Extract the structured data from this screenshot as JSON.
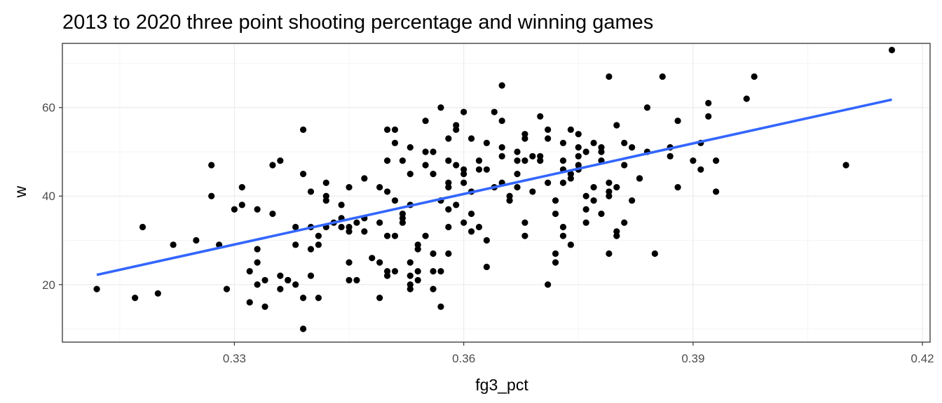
{
  "chart_data": {
    "type": "scatter",
    "title": "2013 to 2020 three point shooting percentage and winning games",
    "xlabel": "fg3_pct",
    "ylabel": "w",
    "xlim": [
      0.3075,
      0.421
    ],
    "ylim": [
      7,
      74.5
    ],
    "x_ticks": [
      0.33,
      0.36,
      0.39,
      0.42
    ],
    "x_tick_labels": [
      "0.33",
      "0.36",
      "0.39",
      "0.42"
    ],
    "y_ticks": [
      20,
      40,
      60
    ],
    "y_tick_labels": [
      "20",
      "40",
      "60"
    ],
    "grid": true,
    "legend": "none",
    "colors": {
      "points": "#000000",
      "trend": "#3366FF",
      "panel_border": "#333333",
      "grid_major": "#ebebeb",
      "grid_minor": "#f5f5f5",
      "tick_text": "#4d4d4d"
    },
    "trend_line": {
      "method": "linear",
      "x": [
        0.312,
        0.416
      ],
      "y": [
        22.2,
        61.8
      ]
    },
    "points": [
      [
        0.312,
        19
      ],
      [
        0.317,
        17
      ],
      [
        0.318,
        33
      ],
      [
        0.32,
        18
      ],
      [
        0.322,
        29
      ],
      [
        0.325,
        30
      ],
      [
        0.327,
        47
      ],
      [
        0.327,
        40
      ],
      [
        0.328,
        29
      ],
      [
        0.329,
        19
      ],
      [
        0.33,
        37
      ],
      [
        0.331,
        38
      ],
      [
        0.331,
        42
      ],
      [
        0.332,
        16
      ],
      [
        0.332,
        23
      ],
      [
        0.333,
        37
      ],
      [
        0.333,
        28
      ],
      [
        0.333,
        25
      ],
      [
        0.333,
        20
      ],
      [
        0.334,
        21
      ],
      [
        0.334,
        15
      ],
      [
        0.335,
        47
      ],
      [
        0.335,
        36
      ],
      [
        0.336,
        48
      ],
      [
        0.336,
        22
      ],
      [
        0.336,
        19
      ],
      [
        0.337,
        21
      ],
      [
        0.337,
        21
      ],
      [
        0.338,
        20
      ],
      [
        0.338,
        33
      ],
      [
        0.338,
        29
      ],
      [
        0.339,
        10
      ],
      [
        0.339,
        45
      ],
      [
        0.339,
        17
      ],
      [
        0.339,
        55
      ],
      [
        0.34,
        22
      ],
      [
        0.34,
        33
      ],
      [
        0.34,
        41
      ],
      [
        0.34,
        28
      ],
      [
        0.341,
        17
      ],
      [
        0.341,
        29
      ],
      [
        0.341,
        31
      ],
      [
        0.342,
        43
      ],
      [
        0.342,
        40
      ],
      [
        0.342,
        39
      ],
      [
        0.342,
        33
      ],
      [
        0.343,
        34
      ],
      [
        0.344,
        33
      ],
      [
        0.344,
        38
      ],
      [
        0.344,
        35
      ],
      [
        0.345,
        21
      ],
      [
        0.345,
        25
      ],
      [
        0.345,
        42
      ],
      [
        0.345,
        32
      ],
      [
        0.345,
        33
      ],
      [
        0.346,
        21
      ],
      [
        0.346,
        34
      ],
      [
        0.347,
        44
      ],
      [
        0.347,
        32
      ],
      [
        0.347,
        35
      ],
      [
        0.348,
        26
      ],
      [
        0.349,
        34
      ],
      [
        0.349,
        25
      ],
      [
        0.349,
        17
      ],
      [
        0.349,
        42
      ],
      [
        0.35,
        48
      ],
      [
        0.35,
        41
      ],
      [
        0.35,
        31
      ],
      [
        0.35,
        23
      ],
      [
        0.35,
        55
      ],
      [
        0.35,
        22
      ],
      [
        0.351,
        55
      ],
      [
        0.351,
        52
      ],
      [
        0.351,
        39
      ],
      [
        0.351,
        31
      ],
      [
        0.351,
        23
      ],
      [
        0.352,
        48
      ],
      [
        0.352,
        35
      ],
      [
        0.352,
        36
      ],
      [
        0.352,
        34
      ],
      [
        0.353,
        51
      ],
      [
        0.353,
        45
      ],
      [
        0.353,
        38
      ],
      [
        0.353,
        25
      ],
      [
        0.353,
        22
      ],
      [
        0.353,
        20
      ],
      [
        0.353,
        19
      ],
      [
        0.354,
        29
      ],
      [
        0.354,
        28
      ],
      [
        0.354,
        21
      ],
      [
        0.354,
        23
      ],
      [
        0.355,
        50
      ],
      [
        0.355,
        47
      ],
      [
        0.355,
        31
      ],
      [
        0.355,
        57
      ],
      [
        0.356,
        27
      ],
      [
        0.356,
        23
      ],
      [
        0.356,
        50
      ],
      [
        0.356,
        45
      ],
      [
        0.356,
        19
      ],
      [
        0.357,
        60
      ],
      [
        0.357,
        39
      ],
      [
        0.357,
        15
      ],
      [
        0.357,
        23
      ],
      [
        0.358,
        48
      ],
      [
        0.358,
        42
      ],
      [
        0.358,
        43
      ],
      [
        0.358,
        53
      ],
      [
        0.358,
        33
      ],
      [
        0.358,
        27
      ],
      [
        0.358,
        37
      ],
      [
        0.359,
        55
      ],
      [
        0.359,
        56
      ],
      [
        0.359,
        47
      ],
      [
        0.359,
        38
      ],
      [
        0.36,
        46
      ],
      [
        0.36,
        43
      ],
      [
        0.36,
        45
      ],
      [
        0.36,
        34
      ],
      [
        0.36,
        59
      ],
      [
        0.361,
        53
      ],
      [
        0.361,
        41
      ],
      [
        0.361,
        36
      ],
      [
        0.361,
        32
      ],
      [
        0.362,
        48
      ],
      [
        0.362,
        46
      ],
      [
        0.362,
        33
      ],
      [
        0.363,
        52
      ],
      [
        0.363,
        24
      ],
      [
        0.363,
        30
      ],
      [
        0.363,
        46
      ],
      [
        0.364,
        59
      ],
      [
        0.364,
        42
      ],
      [
        0.365,
        57
      ],
      [
        0.365,
        43
      ],
      [
        0.365,
        49
      ],
      [
        0.365,
        51
      ],
      [
        0.365,
        65
      ],
      [
        0.366,
        39
      ],
      [
        0.366,
        40
      ],
      [
        0.367,
        48
      ],
      [
        0.367,
        45
      ],
      [
        0.367,
        50
      ],
      [
        0.367,
        42
      ],
      [
        0.368,
        34
      ],
      [
        0.368,
        31
      ],
      [
        0.368,
        53
      ],
      [
        0.368,
        48
      ],
      [
        0.368,
        54
      ],
      [
        0.369,
        49
      ],
      [
        0.369,
        41
      ],
      [
        0.37,
        58
      ],
      [
        0.37,
        49
      ],
      [
        0.37,
        48
      ],
      [
        0.371,
        55
      ],
      [
        0.371,
        53
      ],
      [
        0.371,
        43
      ],
      [
        0.371,
        20
      ],
      [
        0.372,
        25
      ],
      [
        0.372,
        27
      ],
      [
        0.372,
        39
      ],
      [
        0.372,
        36
      ],
      [
        0.373,
        52
      ],
      [
        0.373,
        48
      ],
      [
        0.373,
        46
      ],
      [
        0.373,
        43
      ],
      [
        0.373,
        33
      ],
      [
        0.373,
        31
      ],
      [
        0.374,
        29
      ],
      [
        0.374,
        55
      ],
      [
        0.374,
        44
      ],
      [
        0.374,
        45
      ],
      [
        0.375,
        46
      ],
      [
        0.375,
        47
      ],
      [
        0.375,
        49
      ],
      [
        0.375,
        54
      ],
      [
        0.375,
        51
      ],
      [
        0.376,
        50
      ],
      [
        0.376,
        37
      ],
      [
        0.376,
        34
      ],
      [
        0.376,
        40
      ],
      [
        0.377,
        42
      ],
      [
        0.377,
        39
      ],
      [
        0.377,
        52
      ],
      [
        0.378,
        36
      ],
      [
        0.378,
        48
      ],
      [
        0.378,
        51
      ],
      [
        0.378,
        50
      ],
      [
        0.379,
        27
      ],
      [
        0.379,
        67
      ],
      [
        0.379,
        43
      ],
      [
        0.379,
        41
      ],
      [
        0.379,
        40
      ],
      [
        0.38,
        42
      ],
      [
        0.38,
        32
      ],
      [
        0.38,
        31
      ],
      [
        0.38,
        56
      ],
      [
        0.381,
        47
      ],
      [
        0.381,
        34
      ],
      [
        0.381,
        52
      ],
      [
        0.382,
        51
      ],
      [
        0.382,
        39
      ],
      [
        0.383,
        44
      ],
      [
        0.383,
        44
      ],
      [
        0.384,
        60
      ],
      [
        0.384,
        50
      ],
      [
        0.385,
        27
      ],
      [
        0.386,
        67
      ],
      [
        0.387,
        49
      ],
      [
        0.387,
        51
      ],
      [
        0.388,
        42
      ],
      [
        0.388,
        57
      ],
      [
        0.39,
        48
      ],
      [
        0.391,
        52
      ],
      [
        0.391,
        46
      ],
      [
        0.392,
        58
      ],
      [
        0.392,
        61
      ],
      [
        0.393,
        48
      ],
      [
        0.393,
        41
      ],
      [
        0.397,
        62
      ],
      [
        0.398,
        67
      ],
      [
        0.41,
        47
      ],
      [
        0.416,
        73
      ]
    ]
  }
}
